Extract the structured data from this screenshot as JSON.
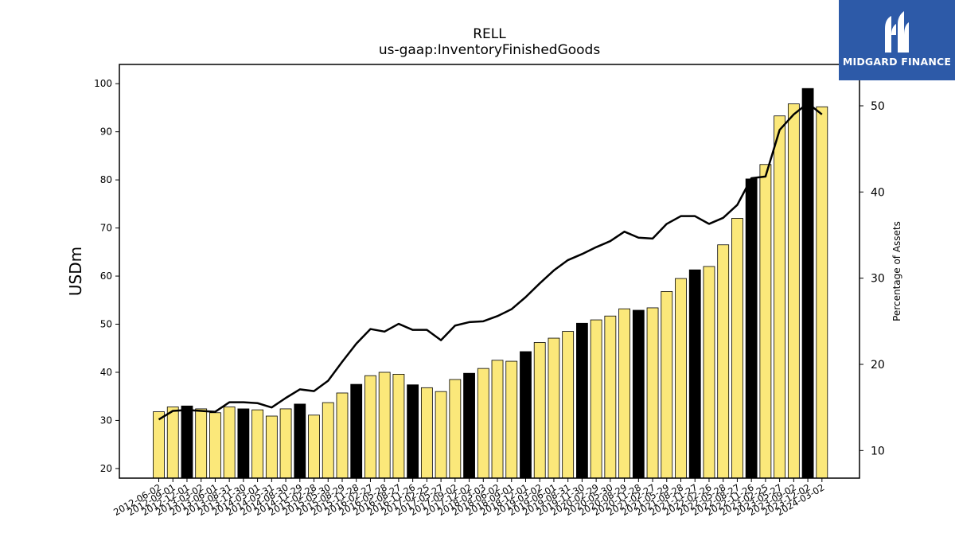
{
  "logo": {
    "text": "MIDGARD FINANCE",
    "icon": "midgard-logo-icon",
    "background": "#2d5aa8"
  },
  "chart_data": {
    "type": "bar",
    "title": "RELL",
    "subtitle": "us-gaap:InventoryFinishedGoods",
    "ylabel": "USDm",
    "y2label": "Percentage of Assets",
    "ylim": [
      18,
      104
    ],
    "y2lim": [
      6.8,
      54.8
    ],
    "yticks": [
      20,
      30,
      40,
      50,
      60,
      70,
      80,
      90,
      100
    ],
    "y2ticks": [
      10,
      20,
      30,
      40,
      50
    ],
    "bar_color": "#fbe87a",
    "highlight_color": "#000000",
    "line_color": "#000000",
    "categories": [
      "2012-06-02",
      "2012-09-01",
      "2012-12-01",
      "2013-03-02",
      "2013-06-01",
      "2013-08-31",
      "2013-11-30",
      "2014-03-01",
      "2014-05-31",
      "2014-08-30",
      "2014-11-29",
      "2015-02-28",
      "2015-05-30",
      "2015-08-29",
      "2015-11-28",
      "2016-02-27",
      "2016-05-28",
      "2016-08-27",
      "2016-11-26",
      "2017-02-25",
      "2017-05-27",
      "2017-09-02",
      "2017-12-02",
      "2018-03-03",
      "2018-06-02",
      "2018-09-01",
      "2018-12-01",
      "2019-03-02",
      "2019-06-01",
      "2019-08-31",
      "2019-11-30",
      "2020-02-29",
      "2020-05-30",
      "2020-08-29",
      "2020-11-28",
      "2021-02-27",
      "2021-05-29",
      "2021-08-28",
      "2021-11-27",
      "2022-02-26",
      "2022-05-28",
      "2022-08-27",
      "2022-11-26",
      "2023-02-25",
      "2023-05-27",
      "2023-09-02",
      "2023-12-02",
      "2024-03-02"
    ],
    "series": [
      {
        "type": "bar",
        "values": [
          31.8,
          32.8,
          33.0,
          32.4,
          31.6,
          32.8,
          32.4,
          32.2,
          30.9,
          32.4,
          33.4,
          31.1,
          33.7,
          35.7,
          37.5,
          39.3,
          40.0,
          39.6,
          37.4,
          36.8,
          36.0,
          38.5,
          39.8,
          40.8,
          42.5,
          42.3,
          44.3,
          46.2,
          47.1,
          48.5,
          50.2,
          50.9,
          51.7,
          53.2,
          52.9,
          53.4,
          56.8,
          59.5,
          61.3,
          62.0,
          66.5,
          72.0,
          80.2,
          83.2,
          93.3,
          95.8,
          99.0,
          95.2
        ],
        "highlight": [
          false,
          false,
          true,
          false,
          false,
          false,
          true,
          false,
          false,
          false,
          true,
          false,
          false,
          false,
          true,
          false,
          false,
          false,
          true,
          false,
          false,
          false,
          true,
          false,
          false,
          false,
          true,
          false,
          false,
          false,
          true,
          false,
          false,
          false,
          true,
          false,
          false,
          false,
          true,
          false,
          false,
          false,
          true,
          false,
          false,
          false,
          true,
          false
        ]
      },
      {
        "type": "line",
        "axis": "right",
        "values": [
          13.6,
          14.6,
          14.7,
          14.6,
          14.5,
          15.6,
          15.6,
          15.5,
          15.0,
          16.1,
          17.1,
          16.9,
          18.1,
          20.3,
          22.4,
          24.1,
          23.8,
          24.7,
          24.0,
          24.0,
          22.8,
          24.5,
          24.9,
          25.0,
          25.6,
          26.4,
          27.8,
          29.4,
          30.9,
          32.1,
          32.8,
          33.6,
          34.3,
          35.4,
          34.7,
          34.6,
          36.3,
          37.2,
          37.2,
          36.3,
          37.0,
          38.5,
          41.6,
          41.8,
          47.2,
          49.0,
          50.3,
          49.0
        ]
      }
    ],
    "grid": false,
    "legend": "none"
  }
}
